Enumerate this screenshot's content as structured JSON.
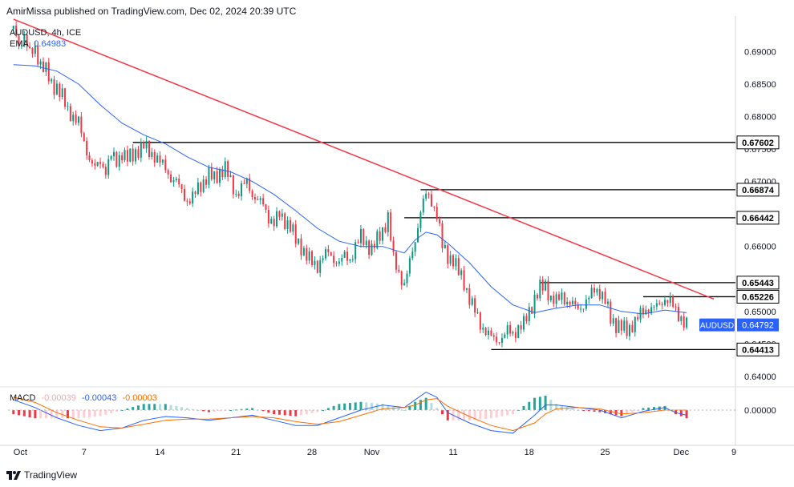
{
  "publisher": "AmirMissa published on TradingView.com, Dec 02, 2024 20:39 UTC",
  "footer_logo": "TradingView",
  "legend": {
    "symbol": "AUDUSD, 4h, ICE",
    "ema_label": "EMA",
    "ema_value": "0.64983",
    "macd_label": "MACD",
    "macd_hist": "-0.00039",
    "macd_line": "-0.00043",
    "macd_signal": "-0.00003"
  },
  "colors": {
    "up": "#089981",
    "down": "#f23645",
    "ema": "#2962ff",
    "trendline": "#f23645",
    "signal": "#ff6d00",
    "level": "#000000",
    "price_tag": "#2962ff"
  },
  "chart_data": {
    "type": "line",
    "title": "",
    "x_ticks": [
      "Oct",
      "7",
      "14",
      "21",
      "28",
      "Nov",
      "11",
      "18",
      "25",
      "Dec",
      "9"
    ],
    "y_ticks": [
      "0.69000",
      "0.68500",
      "0.68000",
      "0.67500",
      "0.67000",
      "0.66500",
      "0.66000",
      "0.65500",
      "0.65000",
      "0.64500",
      "0.64000"
    ],
    "ylim": [
      0.6385,
      0.6945
    ],
    "macd_y_ticks": [
      "0.00000"
    ],
    "current_price": {
      "label": "AUDUSD",
      "value": "0.64792"
    },
    "price_path": [
      [
        0,
        0.6935
      ],
      [
        0.5,
        0.691
      ],
      [
        1,
        0.6925
      ],
      [
        1.5,
        0.6895
      ],
      [
        2,
        0.6905
      ],
      [
        2.5,
        0.688
      ],
      [
        3,
        0.687
      ],
      [
        3.5,
        0.685
      ],
      [
        4,
        0.6845
      ],
      [
        4.5,
        0.683
      ],
      [
        5,
        0.681
      ],
      [
        5.5,
        0.68
      ],
      [
        6,
        0.679
      ],
      [
        6.5,
        0.676
      ],
      [
        7,
        0.6735
      ],
      [
        7.5,
        0.672
      ],
      [
        8,
        0.673
      ],
      [
        8.5,
        0.6718
      ],
      [
        9,
        0.674
      ],
      [
        9.5,
        0.673
      ],
      [
        10,
        0.6745
      ],
      [
        10.5,
        0.6735
      ],
      [
        11,
        0.674
      ],
      [
        11.5,
        0.675
      ],
      [
        12,
        0.6755
      ],
      [
        12.5,
        0.6745
      ],
      [
        13,
        0.674
      ],
      [
        13.5,
        0.673
      ],
      [
        14,
        0.672
      ],
      [
        14.5,
        0.6705
      ],
      [
        15,
        0.67
      ],
      [
        15.5,
        0.6685
      ],
      [
        16,
        0.667
      ],
      [
        16.5,
        0.6675
      ],
      [
        17,
        0.669
      ],
      [
        17.5,
        0.67
      ],
      [
        18,
        0.671
      ],
      [
        18.5,
        0.6705
      ],
      [
        19,
        0.6715
      ],
      [
        19.5,
        0.672
      ],
      [
        20,
        0.67
      ],
      [
        20.5,
        0.668
      ],
      [
        21,
        0.669
      ],
      [
        21.5,
        0.67
      ],
      [
        22,
        0.668
      ],
      [
        22.5,
        0.667
      ],
      [
        23,
        0.6665
      ],
      [
        23.5,
        0.6645
      ],
      [
        24,
        0.6635
      ],
      [
        24.5,
        0.665
      ],
      [
        25,
        0.664
      ],
      [
        25.5,
        0.663
      ],
      [
        26,
        0.661
      ],
      [
        26.5,
        0.66
      ],
      [
        27,
        0.6585
      ],
      [
        27.5,
        0.6575
      ],
      [
        28,
        0.657
      ],
      [
        28.5,
        0.6585
      ],
      [
        29,
        0.659
      ],
      [
        29.5,
        0.658
      ],
      [
        30,
        0.6575
      ],
      [
        30.5,
        0.6585
      ],
      [
        31,
        0.658
      ],
      [
        31.5,
        0.66
      ],
      [
        32,
        0.6615
      ],
      [
        32.5,
        0.6605
      ],
      [
        33,
        0.6595
      ],
      [
        33.5,
        0.661
      ],
      [
        34,
        0.6625
      ],
      [
        34.5,
        0.6645
      ],
      [
        35,
        0.658
      ],
      [
        35.5,
        0.656
      ],
      [
        36,
        0.654
      ],
      [
        36.5,
        0.6575
      ],
      [
        37,
        0.661
      ],
      [
        37.5,
        0.6655
      ],
      [
        38,
        0.668
      ],
      [
        38.5,
        0.667
      ],
      [
        39,
        0.665
      ],
      [
        39.5,
        0.66
      ],
      [
        40,
        0.6585
      ],
      [
        40.5,
        0.658
      ],
      [
        41,
        0.656
      ],
      [
        41.5,
        0.6545
      ],
      [
        42,
        0.652
      ],
      [
        42.5,
        0.65
      ],
      [
        43,
        0.648
      ],
      [
        43.5,
        0.647
      ],
      [
        44,
        0.646
      ],
      [
        44.5,
        0.6455
      ],
      [
        45,
        0.646
      ],
      [
        45.5,
        0.647
      ],
      [
        46,
        0.6465
      ],
      [
        46.5,
        0.6475
      ],
      [
        47,
        0.648
      ],
      [
        47.5,
        0.65
      ],
      [
        48,
        0.652
      ],
      [
        48.5,
        0.6535
      ],
      [
        49,
        0.654
      ],
      [
        49.5,
        0.652
      ],
      [
        50,
        0.6515
      ],
      [
        50.5,
        0.6525
      ],
      [
        51,
        0.6515
      ],
      [
        51.5,
        0.651
      ],
      [
        52,
        0.6505
      ],
      [
        52.5,
        0.651
      ],
      [
        53,
        0.652
      ],
      [
        53.5,
        0.6535
      ],
      [
        54,
        0.653
      ],
      [
        54.5,
        0.6515
      ],
      [
        55,
        0.649
      ],
      [
        55.5,
        0.648
      ],
      [
        56,
        0.6475
      ],
      [
        56.5,
        0.647
      ],
      [
        57,
        0.648
      ],
      [
        57.5,
        0.649
      ],
      [
        58,
        0.65
      ],
      [
        58.5,
        0.6505
      ],
      [
        59,
        0.6505
      ],
      [
        59.5,
        0.651
      ],
      [
        60,
        0.652
      ],
      [
        60.5,
        0.6515
      ],
      [
        61,
        0.65
      ],
      [
        61.5,
        0.649
      ],
      [
        62,
        0.6479
      ]
    ],
    "ema_path": [
      [
        0,
        0.688
      ],
      [
        2,
        0.6878
      ],
      [
        4,
        0.687
      ],
      [
        6,
        0.685
      ],
      [
        8,
        0.6818
      ],
      [
        10,
        0.679
      ],
      [
        12,
        0.6772
      ],
      [
        14,
        0.6758
      ],
      [
        16,
        0.6738
      ],
      [
        18,
        0.6722
      ],
      [
        20,
        0.6715
      ],
      [
        22,
        0.67
      ],
      [
        24,
        0.668
      ],
      [
        26,
        0.6655
      ],
      [
        28,
        0.6628
      ],
      [
        30,
        0.6608
      ],
      [
        32,
        0.66
      ],
      [
        34,
        0.66
      ],
      [
        35,
        0.6595
      ],
      [
        36,
        0.659
      ],
      [
        37,
        0.661
      ],
      [
        38,
        0.6622
      ],
      [
        39,
        0.6618
      ],
      [
        40,
        0.6605
      ],
      [
        42,
        0.6575
      ],
      [
        44,
        0.6538
      ],
      [
        46,
        0.651
      ],
      [
        48,
        0.6498
      ],
      [
        50,
        0.6505
      ],
      [
        52,
        0.651
      ],
      [
        54,
        0.651
      ],
      [
        56,
        0.65
      ],
      [
        58,
        0.6496
      ],
      [
        60,
        0.6502
      ],
      [
        62,
        0.6498
      ]
    ],
    "levels": [
      {
        "label": "0.67602",
        "value": 0.67602,
        "from": 11
      },
      {
        "label": "0.66874",
        "value": 0.66874,
        "from": 37.5
      },
      {
        "label": "0.66442",
        "value": 0.66442,
        "from": 36
      },
      {
        "label": "0.65443",
        "value": 0.65443,
        "from": 48.5
      },
      {
        "label": "0.65226",
        "value": 0.65226,
        "from": 58
      },
      {
        "label": "0.64413",
        "value": 0.64413,
        "from": 44
      }
    ],
    "trendline": {
      "from": [
        0,
        0.695
      ],
      "to": [
        64.5,
        0.6519
      ]
    },
    "macd_line": [
      [
        0,
        0.0008
      ],
      [
        2,
        0.0002
      ],
      [
        4,
        -0.0006
      ],
      [
        6,
        -0.0012
      ],
      [
        8,
        -0.0016
      ],
      [
        10,
        -0.0014
      ],
      [
        12,
        -0.0008
      ],
      [
        14,
        -0.0005
      ],
      [
        16,
        -0.0006
      ],
      [
        18,
        -0.0008
      ],
      [
        20,
        -0.0006
      ],
      [
        22,
        -0.0004
      ],
      [
        24,
        -0.0008
      ],
      [
        26,
        -0.0012
      ],
      [
        28,
        -0.0012
      ],
      [
        30,
        -0.0006
      ],
      [
        32,
        0.0
      ],
      [
        34,
        0.0004
      ],
      [
        36,
        0.0002
      ],
      [
        37,
        0.0008
      ],
      [
        38,
        0.0014
      ],
      [
        39,
        0.001
      ],
      [
        40,
        -0.0002
      ],
      [
        42,
        -0.001
      ],
      [
        44,
        -0.0016
      ],
      [
        46,
        -0.0018
      ],
      [
        48,
        -0.0004
      ],
      [
        49,
        0.0004
      ],
      [
        50,
        0.0004
      ],
      [
        52,
        0.0002
      ],
      [
        54,
        0.0
      ],
      [
        56,
        -0.0006
      ],
      [
        58,
        -0.0001
      ],
      [
        60,
        0.0002
      ],
      [
        61,
        -0.0002
      ],
      [
        62,
        -0.0004
      ]
    ],
    "signal_line": [
      [
        0,
        0.001
      ],
      [
        2,
        0.0006
      ],
      [
        4,
        -0.0002
      ],
      [
        6,
        -0.0008
      ],
      [
        8,
        -0.0013
      ],
      [
        10,
        -0.0014
      ],
      [
        12,
        -0.0011
      ],
      [
        14,
        -0.0008
      ],
      [
        16,
        -0.0007
      ],
      [
        18,
        -0.0007
      ],
      [
        20,
        -0.0006
      ],
      [
        22,
        -0.0005
      ],
      [
        24,
        -0.0006
      ],
      [
        26,
        -0.0009
      ],
      [
        28,
        -0.0011
      ],
      [
        30,
        -0.0009
      ],
      [
        32,
        -0.0004
      ],
      [
        34,
        0.0001
      ],
      [
        36,
        0.0002
      ],
      [
        37,
        0.0004
      ],
      [
        38,
        0.0008
      ],
      [
        39,
        0.0009
      ],
      [
        40,
        0.0003
      ],
      [
        42,
        -0.0005
      ],
      [
        44,
        -0.0012
      ],
      [
        46,
        -0.0016
      ],
      [
        48,
        -0.001
      ],
      [
        49,
        -0.0003
      ],
      [
        50,
        0.0001
      ],
      [
        52,
        0.0002
      ],
      [
        54,
        0.0001
      ],
      [
        56,
        -0.0003
      ],
      [
        58,
        -0.0002
      ],
      [
        60,
        0.0
      ],
      [
        61,
        0.0
      ],
      [
        62,
        -0.0
      ]
    ]
  }
}
